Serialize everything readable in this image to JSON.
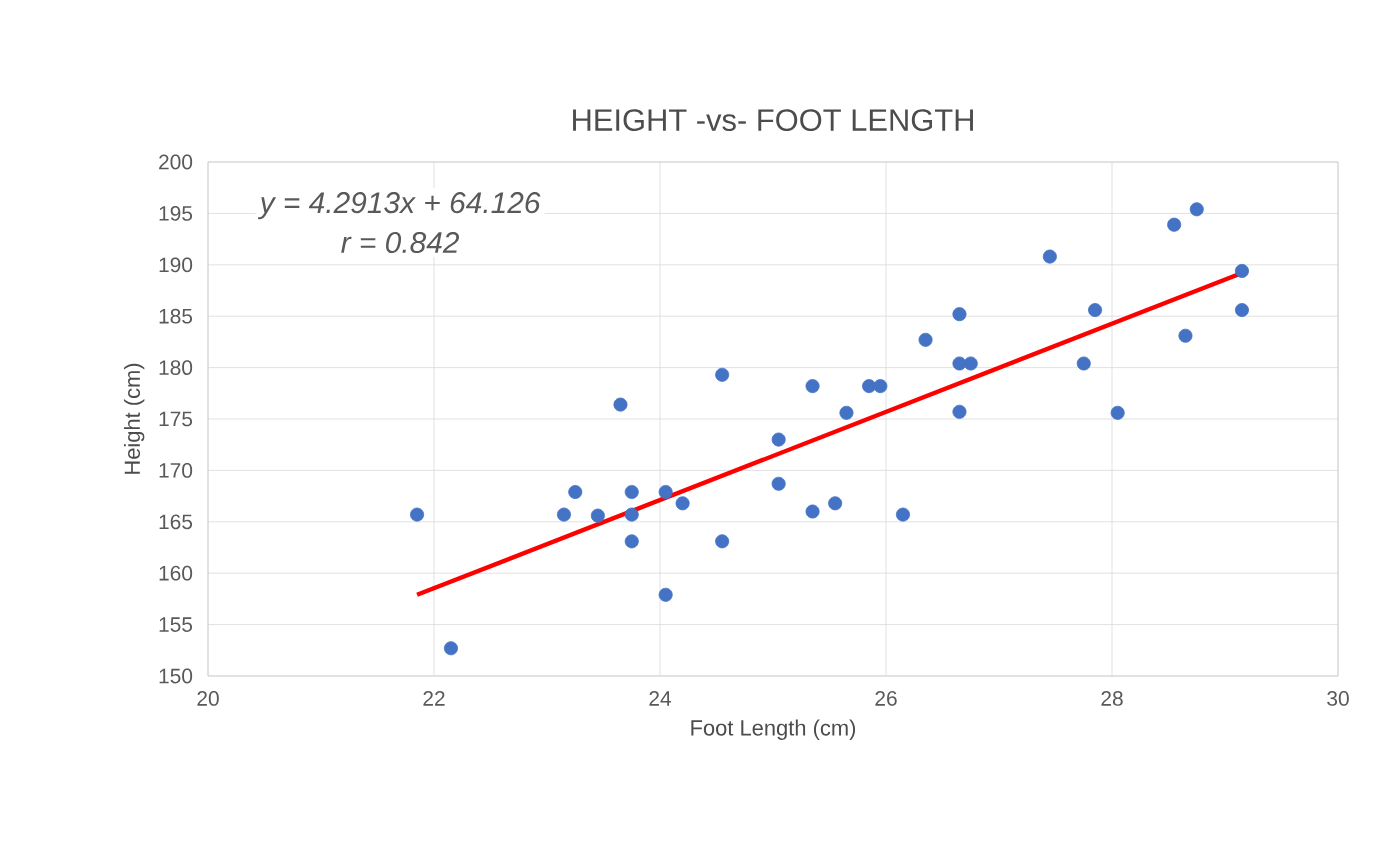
{
  "chart_data": {
    "type": "scatter",
    "title": "HEIGHT -vs- FOOT LENGTH",
    "xlabel": "Foot Length (cm)",
    "ylabel": "Height (cm)",
    "xlim": [
      20,
      30
    ],
    "xticks": [
      20,
      22,
      24,
      26,
      28,
      30
    ],
    "ylim": [
      150,
      200
    ],
    "yticks": [
      150,
      155,
      160,
      165,
      170,
      175,
      180,
      185,
      190,
      195,
      200
    ],
    "grid": true,
    "annotations": [
      "y = 4.2913x + 64.126",
      "r = 0.842"
    ],
    "series": [
      {
        "marker": "circle",
        "color": "#4472c4",
        "x": [
          21.85,
          22.15,
          23.15,
          23.25,
          23.45,
          23.65,
          23.75,
          23.75,
          23.75,
          24.05,
          24.05,
          24.2,
          24.55,
          24.55,
          25.05,
          25.05,
          25.35,
          25.35,
          25.55,
          25.65,
          25.85,
          25.95,
          26.15,
          26.35,
          26.65,
          26.65,
          26.75,
          26.65,
          27.45,
          27.75,
          27.85,
          28.05,
          28.55,
          28.65,
          28.75,
          29.15,
          29.15
        ],
        "values": [
          165.7,
          152.7,
          165.7,
          167.9,
          165.6,
          176.4,
          167.9,
          165.7,
          163.1,
          167.9,
          157.9,
          166.8,
          179.3,
          163.1,
          173.0,
          168.7,
          178.2,
          166.0,
          166.8,
          175.6,
          178.2,
          178.2,
          165.7,
          182.7,
          185.2,
          180.4,
          180.4,
          175.7,
          190.8,
          180.4,
          185.6,
          175.6,
          193.9,
          183.1,
          195.4,
          189.4,
          185.6
        ]
      },
      {
        "type": "line",
        "marker": "none",
        "color": "#ff0000",
        "x": [
          21.85,
          29.15
        ],
        "values": [
          157.9,
          189.2
        ]
      }
    ]
  }
}
